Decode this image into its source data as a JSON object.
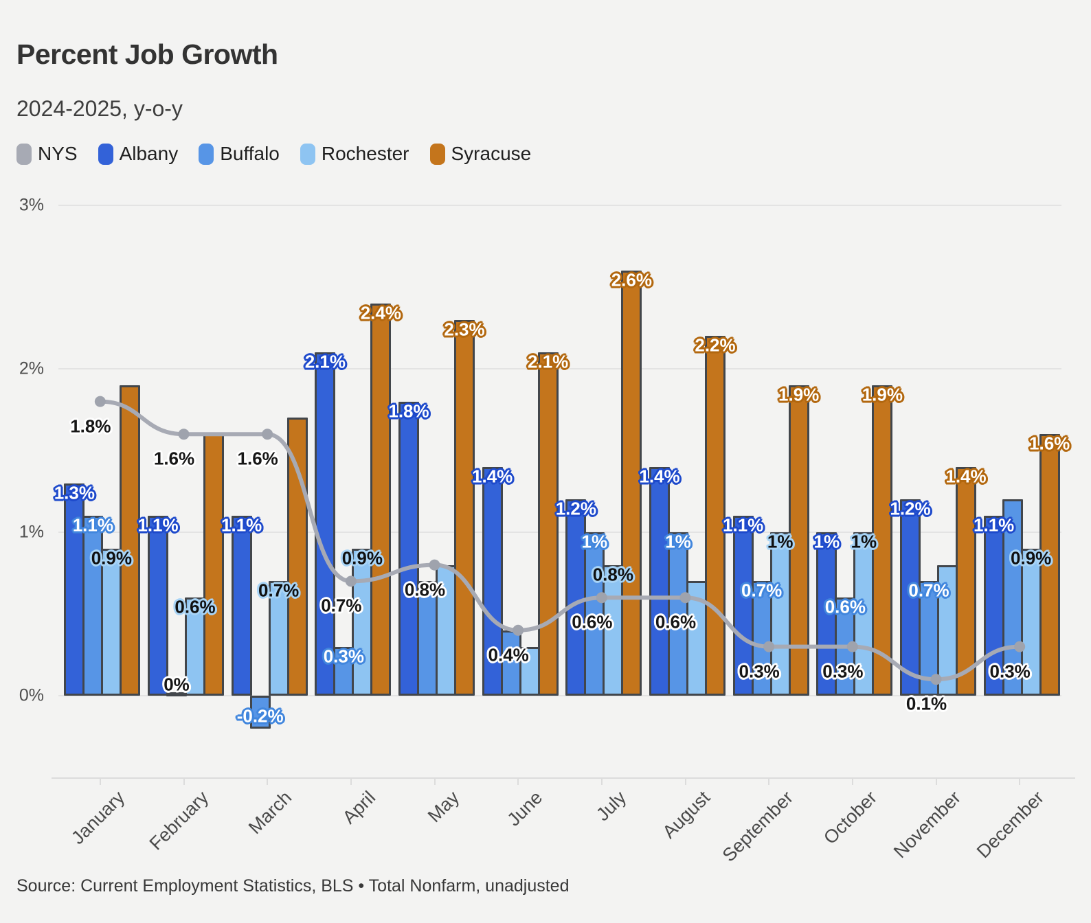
{
  "header": {
    "title": "Percent Job Growth",
    "subtitle": "2024-2025, y-o-y"
  },
  "footer": {
    "source": "Source: Current Employment Statistics, BLS • Total Nonfarm, unadjusted"
  },
  "chart_data": {
    "type": "bar+line combo",
    "categories": [
      "January",
      "February",
      "March",
      "April",
      "May",
      "June",
      "July",
      "August",
      "September",
      "October",
      "November",
      "December"
    ],
    "yticks": [
      "0%",
      "1%",
      "2%",
      "3%"
    ],
    "ylim": [
      -0.5,
      3
    ],
    "grid": "horizontal",
    "legend_position": "top-left",
    "series": [
      {
        "name": "NYS",
        "type": "line",
        "color": "#a7aab4",
        "halo": "#ffffff",
        "label_color": "#161616",
        "values": [
          1.8,
          1.6,
          1.6,
          0.7,
          0.8,
          0.4,
          0.6,
          0.6,
          0.3,
          0.3,
          0.1,
          0.3
        ],
        "labels": [
          "1.8%",
          "1.6%",
          "1.6%",
          "0.7%",
          "0.8%",
          "0.4%",
          "0.6%",
          "0.6%",
          "0.3%",
          "0.3%",
          "0.1%",
          "0.3%"
        ]
      },
      {
        "name": "Albany",
        "type": "bar",
        "color": "#3362d8",
        "halo": "#1d49cb",
        "label_color": "#ffffff",
        "values": [
          1.3,
          1.1,
          1.1,
          2.1,
          1.8,
          1.4,
          1.2,
          1.4,
          1.1,
          1.0,
          1.2,
          1.1
        ],
        "labels": [
          "1.3%",
          "1.1%",
          "1.1%",
          "2.1%",
          "1.8%",
          "1.4%",
          "1.2%",
          "1.4%",
          "1.1%",
          "1%",
          "1.2%",
          "1.1%"
        ]
      },
      {
        "name": "Buffalo",
        "type": "bar",
        "color": "#5795e6",
        "halo": "#4186dd",
        "label_color": "#ffffff",
        "values": [
          1.1,
          0.0,
          -0.2,
          0.3,
          0.7,
          0.4,
          1.0,
          1.0,
          0.7,
          0.6,
          0.7,
          1.2
        ],
        "labels": [
          "1.1%",
          "0%",
          "-0.2%",
          "0.3%",
          "",
          "",
          "1%",
          "1%",
          "0.7%",
          "0.6%",
          "0.7%",
          ""
        ],
        "dark_label_indices": [
          1
        ]
      },
      {
        "name": "Rochester",
        "type": "bar",
        "color": "#8ec4f2",
        "halo": "#a8d4f6",
        "label_color": "#101010",
        "values": [
          0.9,
          0.6,
          0.7,
          0.9,
          0.8,
          0.3,
          0.8,
          0.7,
          1.0,
          1.0,
          0.8,
          0.9
        ],
        "labels": [
          "0.9%",
          "0.6%",
          "0.7%",
          "0.9%",
          "",
          "",
          "0.8%",
          "",
          "1%",
          "1%",
          "",
          "0.9%"
        ]
      },
      {
        "name": "Syracuse",
        "type": "bar",
        "color": "#c4751c",
        "halo": "#b2670e",
        "label_color": "#ffffff",
        "values": [
          1.9,
          1.6,
          1.7,
          2.4,
          2.3,
          2.1,
          2.6,
          2.2,
          1.9,
          1.9,
          1.4,
          1.6
        ],
        "labels": [
          "",
          "",
          "",
          "2.4%",
          "2.3%",
          "2.1%",
          "2.6%",
          "2.2%",
          "1.9%",
          "1.9%",
          "1.4%",
          "1.6%"
        ]
      }
    ]
  }
}
